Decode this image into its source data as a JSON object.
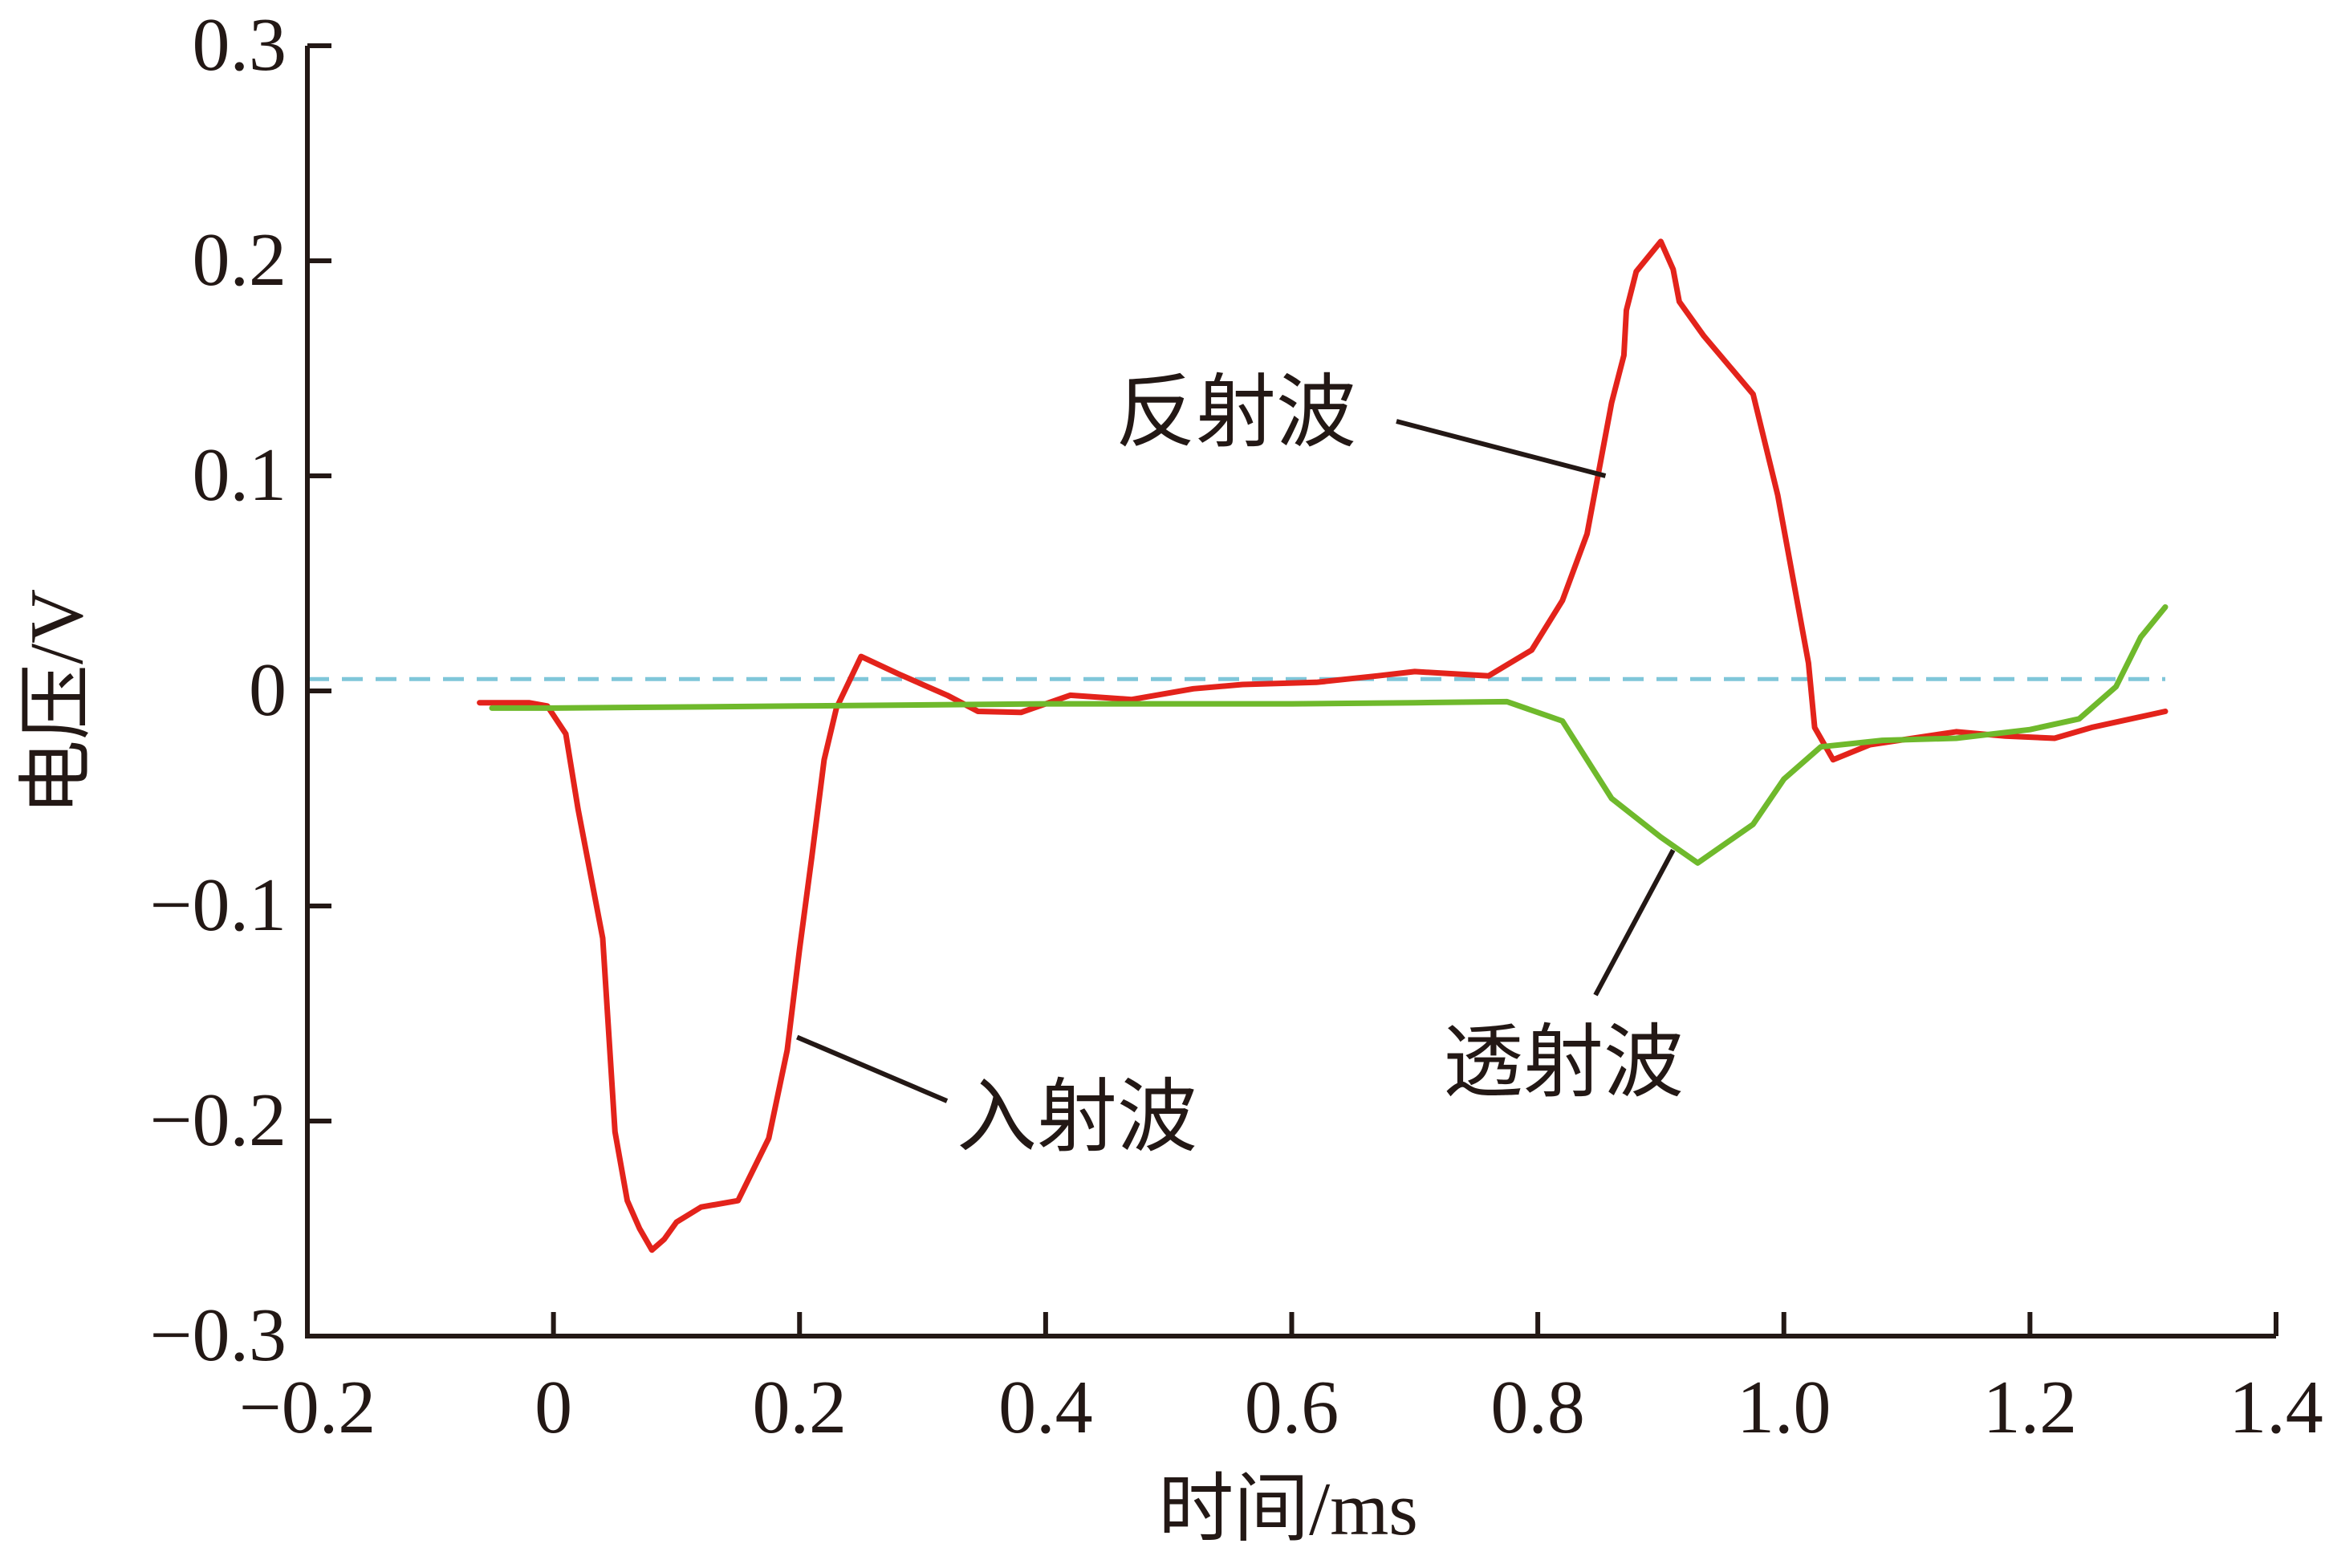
{
  "chart_data": {
    "type": "line",
    "xlabel": "时间/ms",
    "ylabel": "电压/V",
    "xlim": [
      -0.2,
      1.4
    ],
    "ylim": [
      -0.3,
      0.3
    ],
    "xticks": [
      -0.2,
      0,
      0.2,
      0.4,
      0.6,
      0.8,
      1.0,
      1.2,
      1.4
    ],
    "xtick_labels": [
      "−0.2",
      "0",
      "0.2",
      "0.4",
      "0.6",
      "0.8",
      "1.0",
      "1.2",
      "1.4"
    ],
    "yticks": [
      0.3,
      0.2,
      0.1,
      0,
      -0.1,
      -0.2,
      -0.3
    ],
    "ytick_labels": [
      "0.3",
      "0.2",
      "0.1",
      "0",
      "−0.1",
      "−0.2",
      "−0.3"
    ],
    "grid": false,
    "legend": "none",
    "reference_line": {
      "y": 0.0055,
      "style": "dashed",
      "color": "#7fc6d9"
    },
    "series": [
      {
        "color": "#e3231b",
        "points": [
          [
            -0.06,
            -0.0055
          ],
          [
            -0.02,
            -0.0055
          ],
          [
            -0.005,
            -0.007
          ],
          [
            0.01,
            -0.02
          ],
          [
            0.02,
            -0.055
          ],
          [
            0.04,
            -0.115
          ],
          [
            0.05,
            -0.205
          ],
          [
            0.06,
            -0.237
          ],
          [
            0.07,
            -0.25
          ],
          [
            0.08,
            -0.26
          ],
          [
            0.09,
            -0.255
          ],
          [
            0.1,
            -0.247
          ],
          [
            0.12,
            -0.24
          ],
          [
            0.15,
            -0.237
          ],
          [
            0.175,
            -0.208
          ],
          [
            0.19,
            -0.167
          ],
          [
            0.2,
            -0.12
          ],
          [
            0.21,
            -0.077
          ],
          [
            0.22,
            -0.032
          ],
          [
            0.23,
            -0.008
          ],
          [
            0.25,
            0.016
          ],
          [
            0.28,
            0.008
          ],
          [
            0.32,
            -0.002
          ],
          [
            0.345,
            -0.0095
          ],
          [
            0.38,
            -0.01
          ],
          [
            0.42,
            -0.002
          ],
          [
            0.47,
            -0.004
          ],
          [
            0.52,
            0.001
          ],
          [
            0.56,
            0.003
          ],
          [
            0.62,
            0.004
          ],
          [
            0.67,
            0.007
          ],
          [
            0.7,
            0.009
          ],
          [
            0.76,
            0.007
          ],
          [
            0.795,
            0.019
          ],
          [
            0.82,
            0.042
          ],
          [
            0.84,
            0.073
          ],
          [
            0.86,
            0.134
          ],
          [
            0.87,
            0.156
          ],
          [
            0.872,
            0.177
          ],
          [
            0.88,
            0.195
          ],
          [
            0.9,
            0.209
          ],
          [
            0.91,
            0.196
          ],
          [
            0.915,
            0.181
          ],
          [
            0.935,
            0.165
          ],
          [
            0.975,
            0.138
          ],
          [
            0.995,
            0.091
          ],
          [
            1.02,
            0.013
          ],
          [
            1.025,
            -0.017
          ],
          [
            1.04,
            -0.032
          ],
          [
            1.07,
            -0.025
          ],
          [
            1.14,
            -0.019
          ],
          [
            1.18,
            -0.021
          ],
          [
            1.22,
            -0.022
          ],
          [
            1.25,
            -0.017
          ],
          [
            1.31,
            -0.0095
          ]
        ]
      },
      {
        "color": "#6fb92c",
        "points": [
          [
            -0.05,
            -0.008
          ],
          [
            0.0,
            -0.008
          ],
          [
            0.2,
            -0.007
          ],
          [
            0.4,
            -0.006
          ],
          [
            0.6,
            -0.006
          ],
          [
            0.7,
            -0.0055
          ],
          [
            0.775,
            -0.005
          ],
          [
            0.82,
            -0.014
          ],
          [
            0.86,
            -0.05
          ],
          [
            0.9,
            -0.068
          ],
          [
            0.93,
            -0.08
          ],
          [
            0.975,
            -0.062
          ],
          [
            1.0,
            -0.041
          ],
          [
            1.03,
            -0.026
          ],
          [
            1.08,
            -0.023
          ],
          [
            1.14,
            -0.022
          ],
          [
            1.2,
            -0.018
          ],
          [
            1.24,
            -0.013
          ],
          [
            1.27,
            0.002
          ],
          [
            1.29,
            0.025
          ],
          [
            1.31,
            0.039
          ]
        ]
      }
    ],
    "annotations": [
      {
        "text": "反射波"
      },
      {
        "text": "透射波"
      },
      {
        "text": "入射波"
      }
    ]
  }
}
